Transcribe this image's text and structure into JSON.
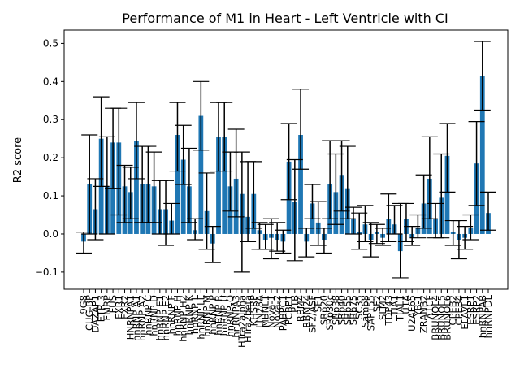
{
  "chart_data": {
    "type": "bar",
    "title": "Performance of M1 in Heart - Left Ventricle with CI",
    "xlabel": "",
    "ylabel": "R2 score",
    "ylim": [
      -0.145,
      0.535
    ],
    "yticks": [
      -0.1,
      0.0,
      0.1,
      0.2,
      0.3,
      0.4,
      0.5
    ],
    "ytick_labels": [
      "−0.1",
      "0.0",
      "0.1",
      "0.2",
      "0.3",
      "0.4",
      "0.5"
    ],
    "grid": false,
    "bar_color": "#1f77b4",
    "errorbar_color": "#000000",
    "categories": [
      "9G8",
      "CUG-BP",
      "DAZAP1",
      "ETR-3",
      "FMRP",
      "FUS",
      "FXR1",
      "FXR2",
      "HNRNPA1",
      "hnRNP A1",
      "hnRNP A2",
      "hnRNP C",
      "hnRNP D",
      "hnRNP E1",
      "hnRNP E2",
      "hnRNP F",
      "hnRNP H",
      "hnRNP H2",
      "hnRNP K",
      "hnRNP L",
      "hnRNP LL",
      "hnRNP M",
      "hnRNP P",
      "hnRNP R",
      "hnRNP U",
      "hnRNP-Q",
      "hnRNPA3",
      "HTra2alpha",
      "HTra2beta",
      "KHSRP",
      "LIN28A",
      "MBNL1",
      "Nova-1",
      "Nova-2",
      "PABPC1",
      "PCBP1",
      "PTB",
      "RBM4",
      "RBM24",
      "SF2/ASF",
      "SF1",
      "SRp20",
      "SRp30c",
      "SRp38",
      "SRp40",
      "SRp55",
      "SRp75",
      "SC35",
      "Sam68",
      "SAP155",
      "SF2",
      "SLM2",
      "TDP43",
      "TIA1",
      "TIAL1",
      "U1A",
      "U2AF65",
      "YB-1",
      "ZRANB2",
      "A1CF",
      "BRUNOL4",
      "BRUNOL5",
      "BRUNOL6",
      "CPEB2",
      "CPEB4",
      "ELAVL1",
      "ESRP1",
      "ESRP2",
      "hnRNPAB",
      "hnRNPDL"
    ],
    "values": [
      -0.02,
      0.13,
      0.065,
      0.25,
      0.125,
      0.24,
      0.24,
      0.125,
      0.11,
      0.245,
      0.13,
      0.13,
      0.125,
      0.065,
      0.065,
      0.035,
      0.26,
      0.195,
      0.125,
      0.01,
      0.31,
      0.06,
      -0.025,
      0.255,
      0.255,
      0.125,
      0.145,
      0.105,
      0.045,
      0.105,
      0.01,
      -0.015,
      -0.01,
      -0.015,
      -0.02,
      0.19,
      0.085,
      0.26,
      -0.02,
      0.08,
      0.03,
      -0.015,
      0.13,
      0.11,
      0.155,
      0.12,
      0.04,
      0.005,
      0.025,
      -0.015,
      0.005,
      -0.01,
      0.04,
      0.025,
      -0.045,
      0.04,
      -0.01,
      0.015,
      0.08,
      0.145,
      0.04,
      0.095,
      0.205,
      0.005,
      -0.015,
      -0.01,
      0.015,
      0.185,
      0.415,
      0.055
    ],
    "ci_low": [
      -0.05,
      0.0,
      -0.015,
      0.125,
      0.0,
      0.12,
      0.05,
      0.03,
      0.04,
      0.145,
      0.03,
      0.03,
      0.03,
      0.0,
      -0.03,
      0.0,
      0.165,
      0.13,
      0.03,
      -0.015,
      0.22,
      -0.04,
      -0.075,
      0.165,
      0.165,
      0.06,
      0.045,
      -0.1,
      -0.02,
      0.015,
      -0.04,
      -0.04,
      -0.065,
      -0.045,
      -0.05,
      0.09,
      -0.07,
      0.17,
      -0.06,
      0.04,
      -0.03,
      -0.05,
      0.04,
      0.025,
      0.06,
      0.04,
      0.0,
      -0.04,
      -0.02,
      -0.06,
      -0.025,
      -0.03,
      -0.02,
      0.0,
      -0.115,
      -0.02,
      -0.03,
      -0.01,
      0.015,
      0.04,
      -0.01,
      -0.01,
      0.11,
      -0.03,
      -0.065,
      -0.04,
      -0.015,
      0.075,
      0.325,
      0.01
    ],
    "ci_high": [
      0.005,
      0.26,
      0.145,
      0.36,
      0.255,
      0.33,
      0.33,
      0.18,
      0.175,
      0.345,
      0.23,
      0.23,
      0.215,
      0.14,
      0.14,
      0.08,
      0.345,
      0.285,
      0.225,
      0.04,
      0.4,
      0.16,
      0.02,
      0.345,
      0.345,
      0.215,
      0.275,
      0.215,
      0.19,
      0.19,
      0.03,
      0.025,
      0.04,
      0.03,
      0.01,
      0.29,
      0.195,
      0.38,
      0.015,
      0.13,
      0.085,
      0.015,
      0.245,
      0.21,
      0.245,
      0.23,
      0.07,
      0.055,
      0.075,
      0.03,
      0.025,
      0.015,
      0.105,
      0.075,
      0.08,
      0.08,
      0.02,
      0.05,
      0.155,
      0.255,
      0.08,
      0.21,
      0.29,
      0.035,
      0.035,
      0.02,
      0.05,
      0.295,
      0.505,
      0.11
    ]
  }
}
